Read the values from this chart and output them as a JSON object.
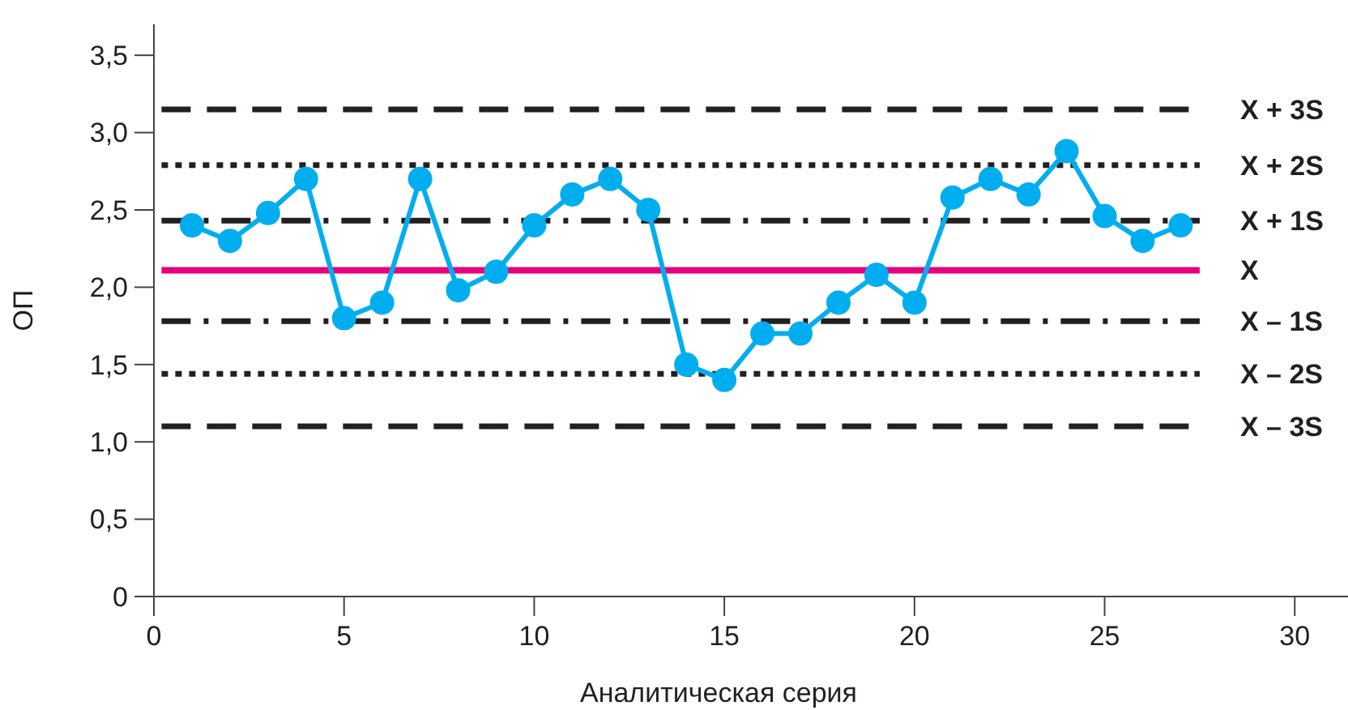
{
  "chart_data": {
    "type": "line",
    "xlabel": "Аналитическая серия",
    "ylabel": "ОП",
    "x": [
      1,
      2,
      3,
      4,
      5,
      6,
      7,
      8,
      9,
      10,
      11,
      12,
      13,
      14,
      15,
      16,
      17,
      18,
      19,
      20,
      21,
      22,
      23,
      24,
      25,
      26,
      27
    ],
    "series": [
      {
        "color": "#00aeef",
        "values": [
          2.4,
          2.3,
          2.48,
          2.7,
          1.8,
          1.9,
          2.7,
          1.98,
          2.1,
          2.4,
          2.6,
          2.7,
          2.5,
          1.5,
          1.4,
          1.7,
          1.7,
          1.9,
          2.08,
          1.9,
          2.58,
          2.7,
          2.6,
          2.88,
          2.46,
          2.3,
          2.4
        ]
      }
    ],
    "marker": "circle",
    "line_style": "solid",
    "xlim": [
      0,
      31.4
    ],
    "xticks": [
      0,
      5,
      10,
      15,
      20,
      25,
      30
    ],
    "ylim": [
      0,
      3.7
    ],
    "yticks": [
      0,
      {
        "value": 0.5,
        "label": "0,5"
      },
      {
        "value": 1,
        "label": "1,0"
      },
      {
        "value": 1.5,
        "label": "1,5"
      },
      {
        "value": 2,
        "label": "2,0"
      },
      {
        "value": 2.5,
        "label": "2,5"
      },
      {
        "value": 3,
        "label": "3,0"
      },
      {
        "value": 3.5,
        "label": "3,5"
      }
    ],
    "grid": false,
    "ref_lines": [
      {
        "axis": "y",
        "value": 3.15,
        "label": "X + 3S",
        "color": "#231f20",
        "line_style": "dashed"
      },
      {
        "axis": "y",
        "value": 2.79,
        "label": "X + 2S",
        "color": "#231f20",
        "line_style": "dotted"
      },
      {
        "axis": "y",
        "value": 2.43,
        "label": "X + 1S",
        "color": "#231f20",
        "line_style": "dashdot"
      },
      {
        "axis": "y",
        "value": 2.11,
        "label": "X",
        "color": "#e6007e",
        "line_style": "solid"
      },
      {
        "axis": "y",
        "value": 1.78,
        "label": "X – 1S",
        "color": "#231f20",
        "line_style": "dashdot"
      },
      {
        "axis": "y",
        "value": 1.44,
        "label": "X – 2S",
        "color": "#231f20",
        "line_style": "dotted"
      },
      {
        "axis": "y",
        "value": 1.1,
        "label": "X – 3S",
        "color": "#231f20",
        "line_style": "dashed"
      }
    ]
  }
}
